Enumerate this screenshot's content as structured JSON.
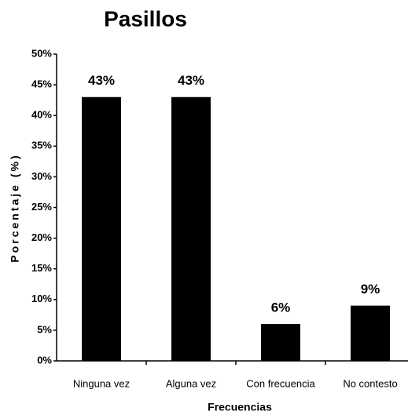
{
  "chart_data": {
    "type": "bar",
    "title": "Pasillos",
    "xlabel": "Frecuencias",
    "ylabel": "Porcentaje (%)",
    "categories": [
      "Ninguna vez",
      "Alguna vez",
      "Con frecuencia",
      "No contesto"
    ],
    "values": [
      43,
      43,
      6,
      9
    ],
    "value_labels": [
      "43%",
      "43%",
      "6%",
      "9%"
    ],
    "color": "#000000",
    "ylim": [
      0,
      50
    ],
    "yticks": [
      {
        "value": 0,
        "label": "0%"
      },
      {
        "value": 5,
        "label": "5%"
      },
      {
        "value": 10,
        "label": "10%"
      },
      {
        "value": 15,
        "label": "15%"
      },
      {
        "value": 20,
        "label": "20%"
      },
      {
        "value": 25,
        "label": "25%"
      },
      {
        "value": 30,
        "label": "30%"
      },
      {
        "value": 35,
        "label": "35%"
      },
      {
        "value": 40,
        "label": "40%"
      },
      {
        "value": 45,
        "label": "45%"
      },
      {
        "value": 50,
        "label": "50%"
      }
    ],
    "grid": false
  }
}
